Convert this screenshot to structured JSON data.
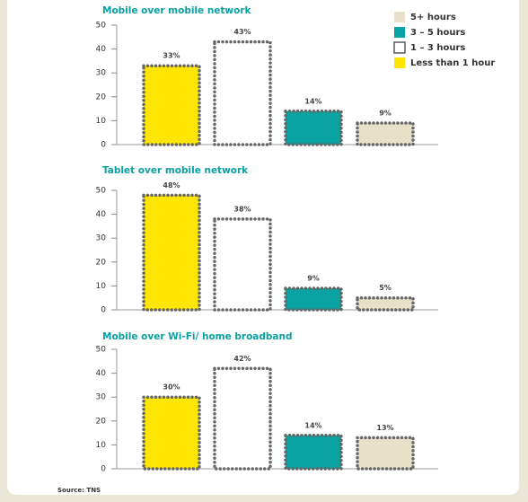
{
  "legend": {
    "items": [
      {
        "name": "5+ hours",
        "color": "#e8e1c9"
      },
      {
        "name": "3 – 5 hours",
        "color": "#0aa3a3"
      },
      {
        "name": "1 – 3 hours",
        "color": "#ffffff"
      },
      {
        "name": "Less than 1 hour",
        "color": "#ffe600"
      }
    ]
  },
  "chart_data": [
    {
      "type": "bar",
      "title": "Mobile over mobile network",
      "categories": [
        null,
        null,
        null,
        null
      ],
      "values": [
        33,
        43,
        14,
        9
      ],
      "value_labels": [
        "33%",
        "43%",
        "14%",
        "9%"
      ],
      "colors": [
        "#ffe600",
        "#ffffff",
        "#0aa3a3",
        "#e8e1c9"
      ],
      "ylim": [
        0,
        50
      ],
      "yticks": [
        0,
        10,
        20,
        30,
        40,
        50
      ]
    },
    {
      "type": "bar",
      "title": "Tablet over mobile network",
      "categories": [
        null,
        null,
        null,
        null
      ],
      "values": [
        48,
        38,
        9,
        5
      ],
      "value_labels": [
        "48%",
        "38%",
        "9%",
        "5%"
      ],
      "colors": [
        "#ffe600",
        "#ffffff",
        "#0aa3a3",
        "#e8e1c9"
      ],
      "ylim": [
        0,
        50
      ],
      "yticks": [
        0,
        10,
        20,
        30,
        40,
        50
      ]
    },
    {
      "type": "bar",
      "title": "Mobile over Wi-Fi/ home broadband",
      "categories": [
        null,
        null,
        null,
        null
      ],
      "values": [
        30,
        42,
        14,
        13
      ],
      "value_labels": [
        "30%",
        "42%",
        "14%",
        "13%"
      ],
      "colors": [
        "#ffe600",
        "#ffffff",
        "#0aa3a3",
        "#e8e1c9"
      ],
      "ylim": [
        0,
        50
      ],
      "yticks": [
        0,
        10,
        20,
        30,
        40,
        50
      ]
    }
  ],
  "source": "Source: TNS"
}
